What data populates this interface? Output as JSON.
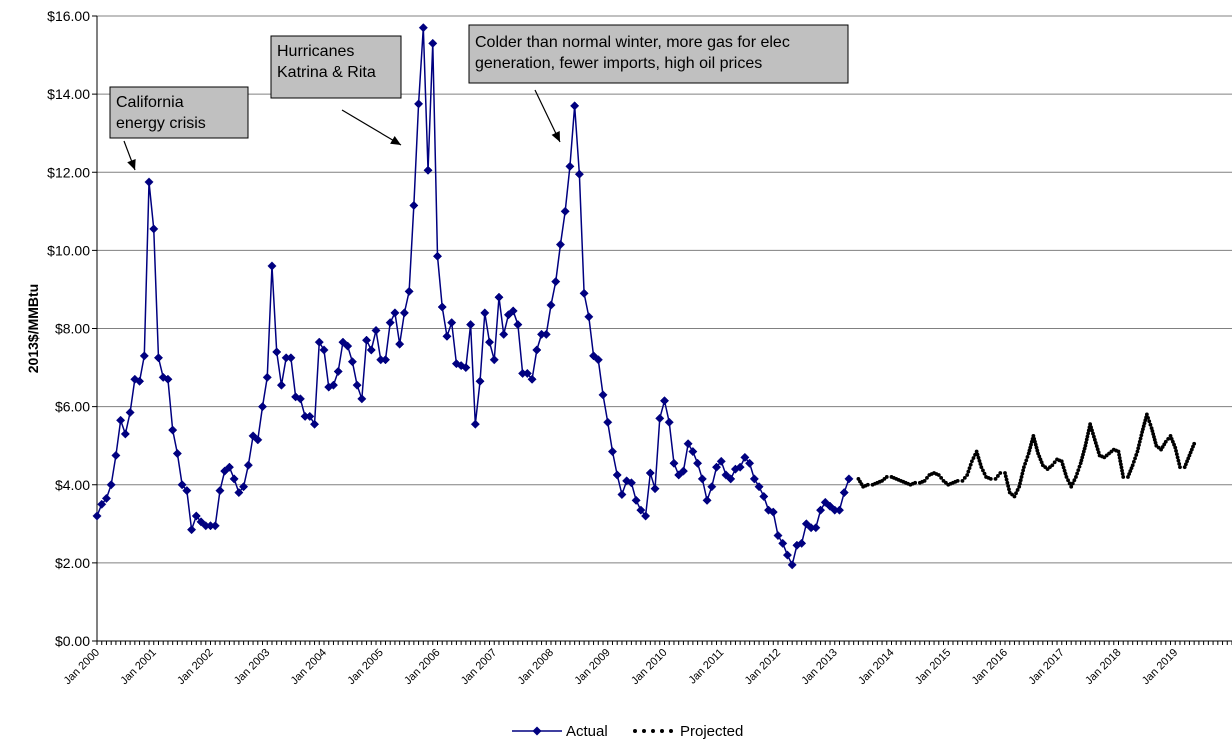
{
  "chart_data": {
    "type": "line",
    "ylabel": "2013$/MMBtu",
    "xlabel": "",
    "ylim": [
      0,
      16
    ],
    "yticks": [
      "$0.00",
      "$2.00",
      "$4.00",
      "$6.00",
      "$8.00",
      "$10.00",
      "$12.00",
      "$14.00",
      "$16.00"
    ],
    "xtick_labels": [
      "Jan 2000",
      "Jan 2001",
      "Jan 2002",
      "Jan 2003",
      "Jan 2004",
      "Jan 2005",
      "Jan 2006",
      "Jan 2007",
      "Jan 2008",
      "Jan 2009",
      "Jan 2010",
      "Jan 2011",
      "Jan 2012",
      "Jan 2013",
      "Jan 2014",
      "Jan 2015",
      "Jan 2016",
      "Jan 2017",
      "Jan 2018",
      "Jan 2019"
    ],
    "x_start": "Jan 2000",
    "x_end": "Dec 2019",
    "grid": "horizontal",
    "legend_position": "bottom",
    "series": [
      {
        "name": "Actual",
        "color": "#000080",
        "marker": "diamond",
        "style": "solid",
        "start": "Jan 2000",
        "values": [
          3.2,
          3.5,
          3.65,
          4.0,
          4.75,
          5.65,
          5.3,
          5.85,
          6.7,
          6.65,
          7.3,
          11.75,
          10.55,
          7.25,
          6.75,
          6.7,
          5.4,
          4.8,
          4.0,
          3.85,
          2.85,
          3.2,
          3.05,
          2.95,
          2.95,
          2.95,
          3.85,
          4.35,
          4.45,
          4.15,
          3.8,
          3.95,
          4.5,
          5.25,
          5.15,
          6.0,
          6.75,
          9.6,
          7.4,
          6.55,
          7.25,
          7.25,
          6.25,
          6.2,
          5.75,
          5.75,
          5.55,
          7.65,
          7.45,
          6.5,
          6.55,
          6.9,
          7.65,
          7.55,
          7.15,
          6.55,
          6.2,
          7.7,
          7.45,
          7.95,
          7.2,
          7.2,
          8.15,
          8.4,
          7.6,
          8.4,
          8.95,
          11.15,
          13.75,
          15.7,
          12.05,
          15.3,
          9.85,
          8.55,
          7.8,
          8.15,
          7.1,
          7.05,
          7.0,
          8.1,
          5.55,
          6.65,
          8.4,
          7.65,
          7.2,
          8.8,
          7.85,
          8.35,
          8.45,
          8.1,
          6.85,
          6.85,
          6.7,
          7.45,
          7.85,
          7.85,
          8.6,
          9.2,
          10.15,
          11.0,
          12.15,
          13.7,
          11.95,
          8.9,
          8.3,
          7.3,
          7.2,
          6.3,
          5.6,
          4.85,
          4.25,
          3.75,
          4.1,
          4.05,
          3.6,
          3.35,
          3.2,
          4.3,
          3.9,
          5.7,
          6.15,
          5.6,
          4.55,
          4.25,
          4.35,
          5.05,
          4.85,
          4.55,
          4.15,
          3.6,
          3.95,
          4.45,
          4.6,
          4.25,
          4.15,
          4.4,
          4.45,
          4.7,
          4.55,
          4.15,
          3.95,
          3.7,
          3.35,
          3.3,
          2.7,
          2.5,
          2.2,
          1.95,
          2.45,
          2.5,
          3.0,
          2.9,
          2.9,
          3.35,
          3.55,
          3.45,
          3.35,
          3.35,
          3.8,
          4.15
        ]
      },
      {
        "name": "Projected",
        "color": "#000000",
        "marker": "none",
        "style": "dotted",
        "start": "Jun 2013",
        "values": [
          4.15,
          3.95,
          4.0,
          4.0,
          4.05,
          4.1,
          4.2,
          4.2,
          4.15,
          4.1,
          4.05,
          4.0,
          4.05,
          4.05,
          4.1,
          4.25,
          4.3,
          4.25,
          4.1,
          4.0,
          4.05,
          4.1,
          4.1,
          4.25,
          4.6,
          4.85,
          4.45,
          4.2,
          4.15,
          4.15,
          4.3,
          4.3,
          3.8,
          3.7,
          3.95,
          4.45,
          4.8,
          5.25,
          4.8,
          4.5,
          4.4,
          4.5,
          4.65,
          4.6,
          4.2,
          3.95,
          4.2,
          4.55,
          5.0,
          5.55,
          5.15,
          4.75,
          4.7,
          4.8,
          4.9,
          4.85,
          4.2,
          4.2,
          4.5,
          4.85,
          5.35,
          5.8,
          5.45,
          5.0,
          4.9,
          5.1,
          5.25,
          4.95,
          4.45,
          4.45,
          4.75,
          5.05
        ]
      }
    ],
    "annotations": [
      {
        "lines": [
          "California",
          "energy crisis"
        ],
        "points_to": "Jan 2001"
      },
      {
        "lines": [
          "Hurricanes",
          "Katrina & Rita"
        ],
        "points_to": "Sep 2005"
      },
      {
        "lines": [
          "Colder than normal winter, more gas for elec",
          "generation, fewer imports, high oil prices"
        ],
        "points_to": "Jun 2008"
      }
    ]
  }
}
